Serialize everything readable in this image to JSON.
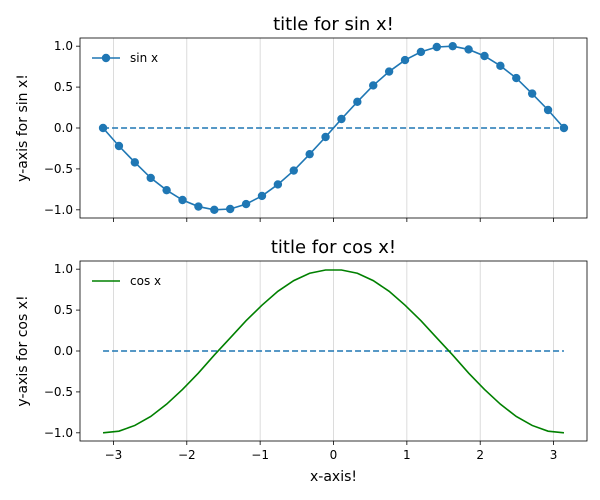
{
  "chart_data": [
    {
      "type": "line",
      "title": "title for sin x!",
      "xlabel": "",
      "ylabel": "y-axis for sin x!",
      "xlim": [
        -3.4558,
        3.4558
      ],
      "ylim": [
        -1.1,
        1.1
      ],
      "xticks": [
        -3,
        -2,
        -1,
        0,
        1,
        2,
        3
      ],
      "yticks": [
        -1.0,
        -0.5,
        0.0,
        0.5,
        1.0
      ],
      "ytick_labels": [
        "−1.0",
        "−0.5",
        "0.0",
        "0.5",
        "1.0"
      ],
      "xtick_labels_visible": false,
      "grid": "x",
      "legend": "top-left",
      "x": [
        -3.1416,
        -2.925,
        -2.7083,
        -2.4917,
        -2.275,
        -2.0583,
        -1.8417,
        -1.625,
        -1.4083,
        -1.1917,
        -0.975,
        -0.7583,
        -0.5417,
        -0.325,
        -0.1083,
        0.1083,
        0.325,
        0.5417,
        0.7583,
        0.975,
        1.1917,
        1.4083,
        1.625,
        1.8417,
        2.0583,
        2.275,
        2.4917,
        2.7083,
        2.925,
        3.1416
      ],
      "series": [
        {
          "name": "sin x",
          "color": "#1f77b4",
          "marker": "circle",
          "values": [
            0.0,
            -0.22,
            -0.42,
            -0.61,
            -0.76,
            -0.88,
            -0.96,
            -1.0,
            -0.99,
            -0.93,
            -0.83,
            -0.69,
            -0.52,
            -0.32,
            -0.11,
            0.11,
            0.32,
            0.52,
            0.69,
            0.83,
            0.93,
            0.99,
            1.0,
            0.96,
            0.88,
            0.76,
            0.61,
            0.42,
            0.22,
            0.0
          ]
        }
      ],
      "reference_line": {
        "y": 0,
        "x_range": [
          -3.1416,
          3.1416
        ],
        "style": "dashed",
        "color": "#1f77b4"
      }
    },
    {
      "type": "line",
      "title": "title for cos x!",
      "xlabel": "x-axis!",
      "ylabel": "y-axis for cos x!",
      "xlim": [
        -3.4558,
        3.4558
      ],
      "ylim": [
        -1.1,
        1.1
      ],
      "xticks": [
        -3,
        -2,
        -1,
        0,
        1,
        2,
        3
      ],
      "xtick_labels": [
        "−3",
        "−2",
        "−1",
        "0",
        "1",
        "2",
        "3"
      ],
      "yticks": [
        -1.0,
        -0.5,
        0.0,
        0.5,
        1.0
      ],
      "ytick_labels": [
        "−1.0",
        "−0.5",
        "0.0",
        "0.5",
        "1.0"
      ],
      "grid": "x",
      "legend": "top-left",
      "x": [
        -3.1416,
        -2.925,
        -2.7083,
        -2.4917,
        -2.275,
        -2.0583,
        -1.8417,
        -1.625,
        -1.4083,
        -1.1917,
        -0.975,
        -0.7583,
        -0.5417,
        -0.325,
        -0.1083,
        0.1083,
        0.325,
        0.5417,
        0.7583,
        0.975,
        1.1917,
        1.4083,
        1.625,
        1.8417,
        2.0583,
        2.275,
        2.4917,
        2.7083,
        2.925,
        3.1416
      ],
      "series": [
        {
          "name": "cos x",
          "color": "#008000",
          "marker": "none",
          "values": [
            -1.0,
            -0.98,
            -0.91,
            -0.8,
            -0.65,
            -0.47,
            -0.27,
            -0.05,
            0.16,
            0.37,
            0.56,
            0.73,
            0.86,
            0.95,
            0.99,
            0.99,
            0.95,
            0.86,
            0.73,
            0.56,
            0.37,
            0.16,
            -0.05,
            -0.27,
            -0.47,
            -0.65,
            -0.8,
            -0.91,
            -0.98,
            -1.0
          ]
        }
      ],
      "reference_line": {
        "y": 0,
        "x_range": [
          -3.1416,
          3.1416
        ],
        "style": "dashed",
        "color": "#1f77b4"
      }
    }
  ]
}
